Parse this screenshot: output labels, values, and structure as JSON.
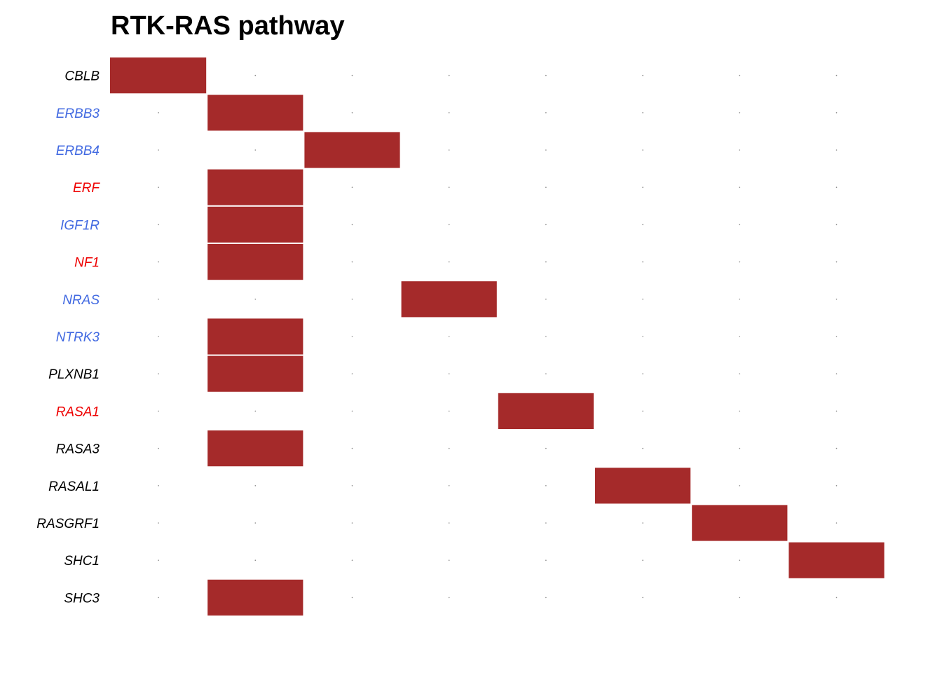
{
  "chart_data": {
    "type": "heatmap",
    "title": "RTK-RAS pathway",
    "genes": [
      {
        "name": "CBLB",
        "color": "#000000"
      },
      {
        "name": "ERBB3",
        "color": "#4169e1"
      },
      {
        "name": "ERBB4",
        "color": "#4169e1"
      },
      {
        "name": "ERF",
        "color": "#ee0000"
      },
      {
        "name": "IGF1R",
        "color": "#4169e1"
      },
      {
        "name": "NF1",
        "color": "#ee0000"
      },
      {
        "name": "NRAS",
        "color": "#4169e1"
      },
      {
        "name": "NTRK3",
        "color": "#4169e1"
      },
      {
        "name": "PLXNB1",
        "color": "#000000"
      },
      {
        "name": "RASA1",
        "color": "#ee0000"
      },
      {
        "name": "RASA3",
        "color": "#000000"
      },
      {
        "name": "RASAL1",
        "color": "#000000"
      },
      {
        "name": "RASGRF1",
        "color": "#000000"
      },
      {
        "name": "SHC1",
        "color": "#000000"
      },
      {
        "name": "SHC3",
        "color": "#000000"
      }
    ],
    "sample_count": 8,
    "matrix": [
      [
        1,
        0,
        0,
        0,
        0,
        0,
        0,
        0
      ],
      [
        0,
        1,
        0,
        0,
        0,
        0,
        0,
        0
      ],
      [
        0,
        0,
        1,
        0,
        0,
        0,
        0,
        0
      ],
      [
        0,
        1,
        0,
        0,
        0,
        0,
        0,
        0
      ],
      [
        0,
        1,
        0,
        0,
        0,
        0,
        0,
        0
      ],
      [
        0,
        1,
        0,
        0,
        0,
        0,
        0,
        0
      ],
      [
        0,
        0,
        0,
        1,
        0,
        0,
        0,
        0
      ],
      [
        0,
        1,
        0,
        0,
        0,
        0,
        0,
        0
      ],
      [
        0,
        1,
        0,
        0,
        0,
        0,
        0,
        0
      ],
      [
        0,
        0,
        0,
        0,
        1,
        0,
        0,
        0
      ],
      [
        0,
        1,
        0,
        0,
        0,
        0,
        0,
        0
      ],
      [
        0,
        0,
        0,
        0,
        0,
        1,
        0,
        0
      ],
      [
        0,
        0,
        0,
        0,
        0,
        0,
        1,
        0
      ],
      [
        0,
        0,
        0,
        0,
        0,
        0,
        0,
        1
      ],
      [
        0,
        1,
        0,
        0,
        0,
        0,
        0,
        0
      ]
    ],
    "fill_color": "#a52a2a",
    "dot_color": "#888888",
    "legend": "none"
  }
}
